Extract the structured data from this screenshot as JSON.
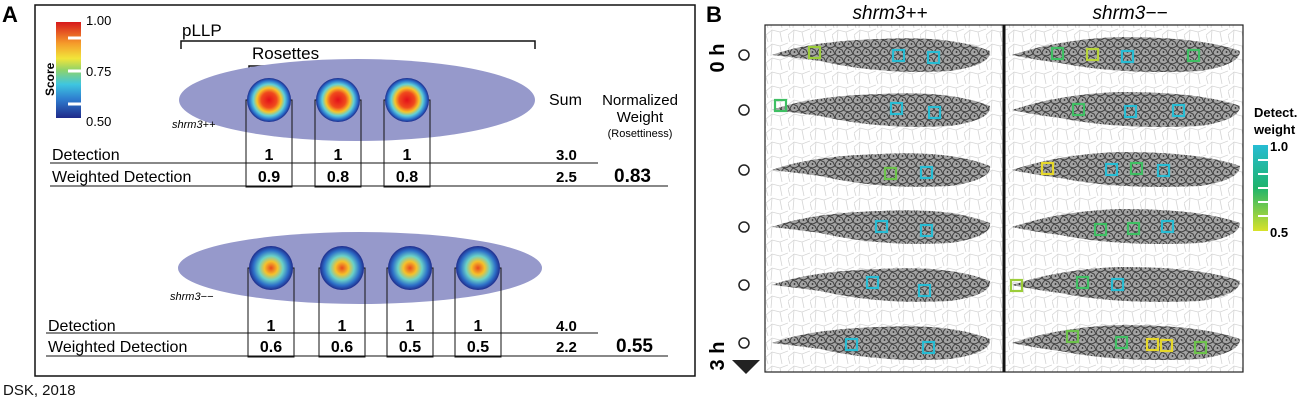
{
  "panel_a": {
    "letter": "A",
    "colorbar": {
      "title": "Score",
      "max_label": "1.00",
      "mid_label": "0.75",
      "min_label": "0.50"
    },
    "pllp_label": "pLLP",
    "rosettes_label": "Rosettes",
    "sum_label": "Sum",
    "normalized_weight_label_1": "Normalized",
    "normalized_weight_label_2": "Weight",
    "normalized_weight_label_3": "(Rosettiness)",
    "wt": {
      "genotype": "shrm3++",
      "detection_label": "Detection",
      "weighted_label": "Weighted Detection",
      "detection": [
        "1",
        "1",
        "1"
      ],
      "weighted": [
        "0.9",
        "0.8",
        "0.8"
      ],
      "sum_detection": "3.0",
      "sum_weighted": "2.5",
      "normalized_weight": "0.83",
      "rosette_intensity": [
        1.0,
        0.9,
        0.9
      ]
    },
    "mut": {
      "genotype": "shrm3−−",
      "detection_label": "Detection",
      "weighted_label": "Weighted Detection",
      "detection": [
        "1",
        "1",
        "1",
        "1"
      ],
      "weighted": [
        "0.6",
        "0.6",
        "0.5",
        "0.5"
      ],
      "sum_detection": "4.0",
      "sum_weighted": "2.2",
      "normalized_weight": "0.55",
      "rosette_intensity": [
        0.75,
        0.75,
        0.6,
        0.6
      ]
    }
  },
  "panel_b": {
    "letter": "B",
    "col_left": "shrm3++",
    "col_right": "shrm3−−",
    "time_start": "0 h",
    "time_end": "3 h",
    "legend_title_1": "Detect.",
    "legend_title_2": "weight",
    "legend_max": "1.0",
    "legend_min": "0.5"
  },
  "footer": {
    "credit": "DSK, 2018"
  }
}
